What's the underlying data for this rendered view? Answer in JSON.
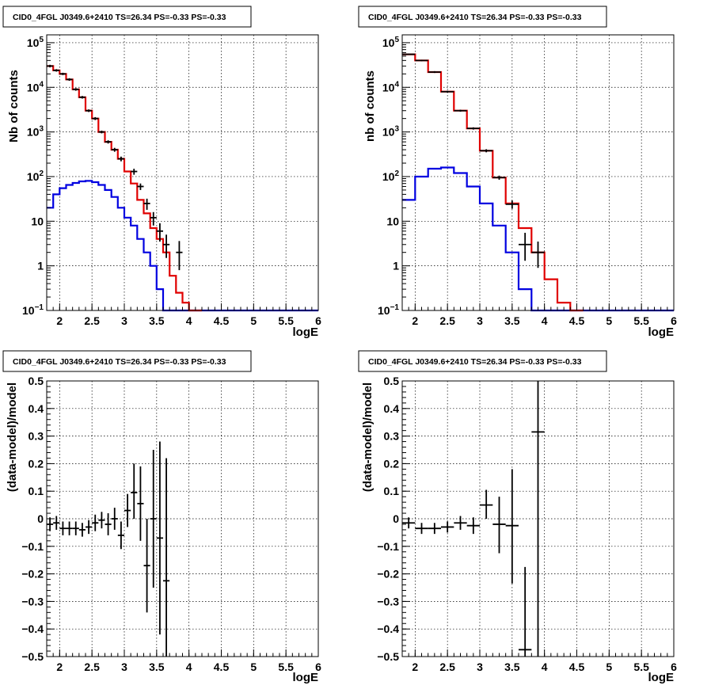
{
  "chart_data": [
    {
      "type": "line",
      "title": "CID0_4FGL J0349.6+2410 TS=26.34 PS=-0.33 PS=-0.33",
      "xlabel": "logE",
      "ylabel": "Nb of counts",
      "xlim": [
        1.8,
        6.0
      ],
      "ylim": [
        0.1,
        150000
      ],
      "yscale": "log",
      "grid": true,
      "xticks": [
        "2",
        "2.5",
        "3",
        "3.5",
        "4",
        "4.5",
        "5",
        "5.5",
        "6"
      ],
      "yticks": [
        {
          "value": 0.1,
          "base": "10",
          "exp": "−1"
        },
        {
          "value": 1,
          "label": "1"
        },
        {
          "value": 10,
          "label": "10"
        },
        {
          "value": 100,
          "base": "10",
          "exp": "2"
        },
        {
          "value": 1000,
          "base": "10",
          "exp": "3"
        },
        {
          "value": 10000,
          "base": "10",
          "exp": "4"
        },
        {
          "value": 100000,
          "base": "10",
          "exp": "5"
        }
      ],
      "bin_edges": [
        1.8,
        1.9,
        2.0,
        2.1,
        2.2,
        2.3,
        2.4,
        2.5,
        2.6,
        2.7,
        2.8,
        2.9,
        3.0,
        3.1,
        3.2,
        3.3,
        3.4,
        3.5,
        3.6,
        3.7,
        3.8,
        3.9,
        4.0,
        4.1,
        4.2,
        4.3,
        4.4,
        4.5,
        4.6,
        4.7,
        4.8,
        4.9,
        5.0,
        5.1,
        5.2,
        5.3,
        5.4,
        5.5,
        5.6,
        5.7,
        5.8,
        5.9,
        6.0
      ],
      "series": [
        {
          "color": "#e00000",
          "style": "step",
          "values": [
            30000,
            24000,
            20000,
            15000,
            9000,
            6000,
            3000,
            2000,
            1000,
            600,
            400,
            250,
            130,
            70,
            30,
            15,
            7,
            4,
            2,
            0.6,
            0.25,
            0.15,
            0.08,
            0.06
          ]
        },
        {
          "color": "#0000e0",
          "style": "step",
          "values": [
            20,
            40,
            55,
            65,
            72,
            78,
            80,
            75,
            65,
            50,
            35,
            20,
            12,
            8,
            4,
            2,
            1,
            0.3,
            0.08,
            0.05,
            0.05,
            0.05,
            0.05,
            0.05,
            0.05,
            0.05,
            0.05,
            0.05,
            0.05,
            0.05,
            0.05,
            0.05,
            0.05,
            0.05,
            0.05,
            0.05,
            0.05,
            0.05,
            0.05,
            0.05,
            0.05,
            0.05
          ]
        }
      ],
      "data_points": [
        {
          "x": 1.85,
          "y": 30000,
          "lo": 28000,
          "hi": 32000
        },
        {
          "x": 1.95,
          "y": 24000,
          "lo": 22500,
          "hi": 25500
        },
        {
          "x": 2.05,
          "y": 20000,
          "lo": 18800,
          "hi": 21200
        },
        {
          "x": 2.15,
          "y": 15000,
          "lo": 14000,
          "hi": 16000
        },
        {
          "x": 2.25,
          "y": 9000,
          "lo": 8400,
          "hi": 9600
        },
        {
          "x": 2.35,
          "y": 6000,
          "lo": 5600,
          "hi": 6400
        },
        {
          "x": 2.45,
          "y": 3000,
          "lo": 2800,
          "hi": 3200
        },
        {
          "x": 2.55,
          "y": 2000,
          "lo": 1850,
          "hi": 2150
        },
        {
          "x": 2.65,
          "y": 1000,
          "lo": 930,
          "hi": 1070
        },
        {
          "x": 2.75,
          "y": 600,
          "lo": 550,
          "hi": 650
        },
        {
          "x": 2.85,
          "y": 400,
          "lo": 360,
          "hi": 440
        },
        {
          "x": 2.95,
          "y": 250,
          "lo": 220,
          "hi": 280
        },
        {
          "x": 3.15,
          "y": 130,
          "lo": 110,
          "hi": 150
        },
        {
          "x": 3.25,
          "y": 60,
          "lo": 50,
          "hi": 70
        },
        {
          "x": 3.35,
          "y": 25,
          "lo": 18,
          "hi": 32
        },
        {
          "x": 3.45,
          "y": 12,
          "lo": 8,
          "hi": 16
        },
        {
          "x": 3.55,
          "y": 6,
          "lo": 3.5,
          "hi": 9
        },
        {
          "x": 3.65,
          "y": 3,
          "lo": 1.5,
          "hi": 5
        },
        {
          "x": 3.85,
          "y": 2,
          "lo": 0.8,
          "hi": 3.6
        }
      ]
    },
    {
      "type": "line",
      "title": "CID0_4FGL J0349.6+2410 TS=26.34 PS=-0.33 PS=-0.33",
      "xlabel": "logE",
      "ylabel": "nb of counts",
      "xlim": [
        1.8,
        6.0
      ],
      "ylim": [
        0.1,
        150000
      ],
      "yscale": "log",
      "grid": true,
      "xticks": [
        "2",
        "2.5",
        "3",
        "3.5",
        "4",
        "4.5",
        "5",
        "5.5",
        "6"
      ],
      "yticks": [
        {
          "value": 0.1,
          "base": "10",
          "exp": "−1"
        },
        {
          "value": 1,
          "label": "1"
        },
        {
          "value": 10,
          "label": "10"
        },
        {
          "value": 100,
          "base": "10",
          "exp": "2"
        },
        {
          "value": 1000,
          "base": "10",
          "exp": "3"
        },
        {
          "value": 10000,
          "base": "10",
          "exp": "4"
        },
        {
          "value": 100000,
          "base": "10",
          "exp": "5"
        }
      ],
      "bin_edges": [
        1.8,
        2.0,
        2.2,
        2.4,
        2.6,
        2.8,
        3.0,
        3.2,
        3.4,
        3.6,
        3.8,
        4.0,
        4.2,
        4.4,
        4.6,
        4.8,
        5.0,
        5.2,
        5.4,
        5.6,
        5.8,
        6.0
      ],
      "series": [
        {
          "color": "#e00000",
          "style": "step",
          "values": [
            55000,
            40000,
            22000,
            8000,
            3000,
            1200,
            380,
            95,
            25,
            7,
            2,
            0.5,
            0.15,
            0.07
          ]
        },
        {
          "color": "#0000e0",
          "style": "step",
          "values": [
            30,
            100,
            150,
            160,
            120,
            60,
            25,
            8,
            2,
            0.3,
            0.05,
            0.05,
            0.05,
            0.05,
            0.05,
            0.05,
            0.05,
            0.05,
            0.05,
            0.05,
            0.05
          ]
        }
      ],
      "data_points": [
        {
          "x": 1.9,
          "y": 55000,
          "lo": 53000,
          "hi": 57000
        },
        {
          "x": 2.1,
          "y": 40000,
          "lo": 38500,
          "hi": 41500
        },
        {
          "x": 2.3,
          "y": 22000,
          "lo": 21000,
          "hi": 23000
        },
        {
          "x": 2.5,
          "y": 8000,
          "lo": 7600,
          "hi": 8400
        },
        {
          "x": 2.7,
          "y": 3000,
          "lo": 2850,
          "hi": 3150
        },
        {
          "x": 2.9,
          "y": 1200,
          "lo": 1130,
          "hi": 1270
        },
        {
          "x": 3.1,
          "y": 380,
          "lo": 350,
          "hi": 410
        },
        {
          "x": 3.3,
          "y": 95,
          "lo": 85,
          "hi": 105
        },
        {
          "x": 3.5,
          "y": 24,
          "lo": 19,
          "hi": 29
        },
        {
          "x": 3.7,
          "y": 3,
          "lo": 1.3,
          "hi": 5.5
        },
        {
          "x": 3.9,
          "y": 2,
          "lo": 0.9,
          "hi": 3.5
        }
      ]
    },
    {
      "type": "scatter",
      "title": "CID0_4FGL J0349.6+2410 TS=26.34 PS=-0.33 PS=-0.33",
      "xlabel": "logE",
      "ylabel": "(data-model)/model",
      "xlim": [
        1.8,
        6.0
      ],
      "ylim": [
        -0.5,
        0.5
      ],
      "grid": true,
      "xticks": [
        "2",
        "2.5",
        "3",
        "3.5",
        "4",
        "4.5",
        "5",
        "5.5",
        "6"
      ],
      "yticks": [
        "−0.5",
        "−0.4",
        "−0.3",
        "−0.2",
        "−0.1",
        "0",
        "0.1",
        "0.2",
        "0.3",
        "0.4",
        "0.5"
      ],
      "xerr": 0.05,
      "data_points": [
        {
          "x": 1.85,
          "y": -0.02,
          "lo": -0.045,
          "hi": 0.005
        },
        {
          "x": 1.95,
          "y": -0.015,
          "lo": -0.04,
          "hi": 0.01
        },
        {
          "x": 2.05,
          "y": -0.035,
          "lo": -0.06,
          "hi": -0.01
        },
        {
          "x": 2.15,
          "y": -0.035,
          "lo": -0.06,
          "hi": -0.01
        },
        {
          "x": 2.25,
          "y": -0.035,
          "lo": -0.06,
          "hi": -0.01
        },
        {
          "x": 2.35,
          "y": -0.04,
          "lo": -0.065,
          "hi": -0.015
        },
        {
          "x": 2.45,
          "y": -0.03,
          "lo": -0.055,
          "hi": -0.005
        },
        {
          "x": 2.55,
          "y": -0.015,
          "lo": -0.045,
          "hi": 0.015
        },
        {
          "x": 2.65,
          "y": -0.005,
          "lo": -0.035,
          "hi": 0.025
        },
        {
          "x": 2.75,
          "y": -0.02,
          "lo": -0.06,
          "hi": 0.02
        },
        {
          "x": 2.85,
          "y": 0.0,
          "lo": -0.04,
          "hi": 0.04
        },
        {
          "x": 2.95,
          "y": -0.06,
          "lo": -0.11,
          "hi": -0.01
        },
        {
          "x": 3.05,
          "y": 0.03,
          "lo": -0.03,
          "hi": 0.09
        },
        {
          "x": 3.15,
          "y": 0.095,
          "lo": 0.0,
          "hi": 0.2
        },
        {
          "x": 3.25,
          "y": 0.055,
          "lo": -0.08,
          "hi": 0.19
        },
        {
          "x": 3.35,
          "y": -0.17,
          "lo": -0.34,
          "hi": 0.0
        },
        {
          "x": 3.45,
          "y": 0.0,
          "lo": -0.25,
          "hi": 0.25
        },
        {
          "x": 3.55,
          "y": -0.07,
          "lo": -0.42,
          "hi": 0.28
        },
        {
          "x": 3.65,
          "y": -0.225,
          "lo": -0.5,
          "hi": 0.22
        }
      ]
    },
    {
      "type": "scatter",
      "title": "CID0_4FGL J0349.6+2410 TS=26.34 PS=-0.33 PS=-0.33",
      "xlabel": "logE",
      "ylabel": "(data-model)/model",
      "xlim": [
        1.8,
        6.0
      ],
      "ylim": [
        -0.5,
        0.5
      ],
      "grid": true,
      "xticks": [
        "2",
        "2.5",
        "3",
        "3.5",
        "4",
        "4.5",
        "5",
        "5.5",
        "6"
      ],
      "yticks": [
        "−0.5",
        "−0.4",
        "−0.3",
        "−0.2",
        "−0.1",
        "0",
        "0.1",
        "0.2",
        "0.3",
        "0.4",
        "0.5"
      ],
      "xerr": 0.1,
      "data_points": [
        {
          "x": 1.9,
          "y": -0.015,
          "lo": -0.035,
          "hi": 0.005
        },
        {
          "x": 2.1,
          "y": -0.035,
          "lo": -0.055,
          "hi": -0.015
        },
        {
          "x": 2.3,
          "y": -0.035,
          "lo": -0.055,
          "hi": -0.015
        },
        {
          "x": 2.5,
          "y": -0.03,
          "lo": -0.05,
          "hi": -0.01
        },
        {
          "x": 2.7,
          "y": -0.015,
          "lo": -0.04,
          "hi": 0.01
        },
        {
          "x": 2.9,
          "y": -0.025,
          "lo": -0.055,
          "hi": 0.005
        },
        {
          "x": 3.1,
          "y": 0.05,
          "lo": 0.0,
          "hi": 0.105
        },
        {
          "x": 3.3,
          "y": -0.02,
          "lo": -0.125,
          "hi": 0.08
        },
        {
          "x": 3.5,
          "y": -0.025,
          "lo": -0.235,
          "hi": 0.18
        },
        {
          "x": 3.7,
          "y": -0.475,
          "lo": -0.5,
          "hi": -0.175
        },
        {
          "x": 3.9,
          "y": 0.315,
          "lo": -0.5,
          "hi": 0.5
        }
      ]
    }
  ]
}
